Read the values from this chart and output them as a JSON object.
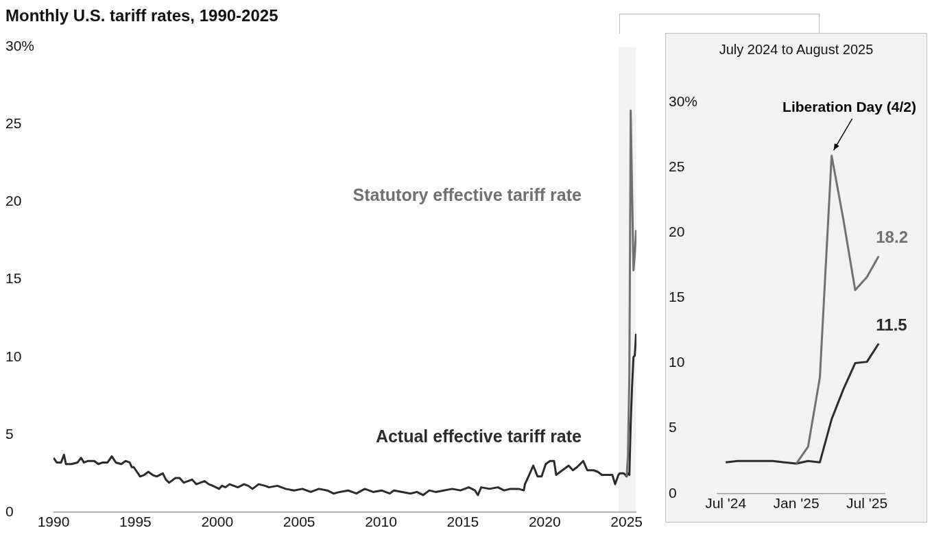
{
  "chart_data": [
    {
      "type": "line",
      "title": "Monthly U.S. tariff rates, 1990-2025",
      "xlim": [
        1990,
        2025.6
      ],
      "xticks": [
        1990,
        1995,
        2000,
        2005,
        2010,
        2015,
        2020,
        2025
      ],
      "ylim": [
        0,
        30
      ],
      "yticks": [
        0,
        5,
        10,
        15,
        20,
        25,
        {
          "value": 30,
          "label": "30%"
        }
      ],
      "grid": false,
      "legend": false,
      "bands": [
        {
          "axis": "x",
          "from": 2024.5,
          "to": 2025.58,
          "color": "#f2f2f2"
        }
      ],
      "series": [
        {
          "name": "Statutory effective tariff rate",
          "color": "#707070",
          "x": [
            2025.0,
            2025.08,
            2025.17,
            2025.25,
            2025.33,
            2025.42,
            2025.5,
            2025.58
          ],
          "values": [
            2.3,
            3.6,
            8.9,
            25.9,
            21.0,
            15.6,
            16.6,
            18.2
          ]
        },
        {
          "name": "Actual effective tariff rate",
          "color": "#2b2b2b",
          "x": [
            1990.0,
            1990.2,
            1990.46,
            1990.64,
            1990.76,
            1991.09,
            1991.47,
            1991.68,
            1991.86,
            1992.11,
            1992.49,
            1992.74,
            1993.0,
            1993.3,
            1993.56,
            1993.81,
            1994.14,
            1994.4,
            1994.65,
            1994.78,
            1994.9,
            1995.03,
            1995.29,
            1995.54,
            1995.79,
            1996.05,
            1996.3,
            1996.68,
            1996.86,
            1997.06,
            1997.45,
            1997.7,
            1997.95,
            1998.21,
            1998.46,
            1998.72,
            1998.97,
            1999.22,
            1999.48,
            1999.73,
            2000.11,
            2000.29,
            2000.5,
            2000.75,
            2001.0,
            2001.26,
            2001.64,
            2001.89,
            2002.15,
            2002.53,
            2002.91,
            2003.16,
            2003.67,
            2004.18,
            2004.69,
            2005.2,
            2005.71,
            2006.21,
            2006.72,
            2007.1,
            2007.48,
            2007.99,
            2008.5,
            2009.01,
            2009.52,
            2010.03,
            2010.53,
            2010.79,
            2011.3,
            2011.8,
            2012.19,
            2012.57,
            2012.95,
            2013.33,
            2013.84,
            2014.35,
            2014.85,
            2015.36,
            2015.74,
            2015.92,
            2016.12,
            2016.63,
            2017.14,
            2017.52,
            2017.9,
            2018.41,
            2018.72,
            2018.79,
            2019.05,
            2019.3,
            2019.56,
            2019.81,
            2020.06,
            2020.32,
            2020.57,
            2020.7,
            2020.95,
            2021.21,
            2021.46,
            2021.72,
            2021.97,
            2022.35,
            2022.6,
            2022.99,
            2023.24,
            2023.49,
            2023.8,
            2024.13,
            2024.3,
            2024.5,
            2024.58,
            2024.67,
            2024.75,
            2024.83,
            2024.92,
            2025.0,
            2025.08,
            2025.17,
            2025.25,
            2025.33,
            2025.42,
            2025.5,
            2025.58
          ],
          "values": [
            3.5,
            3.2,
            3.2,
            3.7,
            3.1,
            3.1,
            3.2,
            3.5,
            3.2,
            3.3,
            3.3,
            3.1,
            3.2,
            3.2,
            3.6,
            3.2,
            3.1,
            3.3,
            3.2,
            2.9,
            2.9,
            2.7,
            2.3,
            2.4,
            2.6,
            2.4,
            2.3,
            2.5,
            2.1,
            1.9,
            2.2,
            2.2,
            1.9,
            2.0,
            2.1,
            1.8,
            1.9,
            2.0,
            1.8,
            1.7,
            1.5,
            1.7,
            1.6,
            1.8,
            1.7,
            1.6,
            1.8,
            1.7,
            1.5,
            1.8,
            1.7,
            1.6,
            1.7,
            1.5,
            1.4,
            1.5,
            1.3,
            1.5,
            1.4,
            1.2,
            1.3,
            1.4,
            1.2,
            1.5,
            1.3,
            1.4,
            1.2,
            1.4,
            1.3,
            1.2,
            1.3,
            1.1,
            1.4,
            1.3,
            1.4,
            1.5,
            1.4,
            1.6,
            1.4,
            1.1,
            1.6,
            1.5,
            1.6,
            1.4,
            1.5,
            1.5,
            1.4,
            1.8,
            2.4,
            3.0,
            2.3,
            2.3,
            3.1,
            3.3,
            3.3,
            2.4,
            2.6,
            2.8,
            3.0,
            2.7,
            2.9,
            3.3,
            2.7,
            2.7,
            2.6,
            2.4,
            2.4,
            2.4,
            1.8,
            2.4,
            2.5,
            2.5,
            2.5,
            2.5,
            2.4,
            2.3,
            2.5,
            2.4,
            5.7,
            8.0,
            10.0,
            10.1,
            11.5
          ]
        }
      ]
    },
    {
      "type": "line",
      "title": "July 2024 to August 2025",
      "xlim": [
        "2024-06-08",
        "2025-08-18"
      ],
      "xticks": [
        {
          "value": "2024-07",
          "label": "Jul '24"
        },
        {
          "value": "2025-01",
          "label": "Jan '25"
        },
        {
          "value": "2025-07",
          "label": "Jul '25"
        }
      ],
      "ylim": [
        0,
        30
      ],
      "yticks": [
        0,
        5,
        10,
        15,
        20,
        25,
        {
          "value": 30,
          "label": "30%"
        }
      ],
      "grid": false,
      "legend": false,
      "annotations": [
        {
          "text": "Liberation Day (4/2)",
          "x": "2025-04",
          "y": 25.9
        }
      ],
      "series": [
        {
          "color": "#707070",
          "x": [
            "2025-01",
            "2025-02",
            "2025-03",
            "2025-04",
            "2025-05",
            "2025-06",
            "2025-07",
            "2025-08"
          ],
          "values": [
            2.3,
            3.6,
            8.9,
            25.9,
            21.0,
            15.6,
            16.6,
            18.2
          ],
          "value_labels": [
            null,
            null,
            null,
            null,
            null,
            null,
            null,
            "18.2"
          ]
        },
        {
          "color": "#2b2b2b",
          "x": [
            "2024-07",
            "2024-08",
            "2024-09",
            "2024-10",
            "2024-11",
            "2024-12",
            "2025-01",
            "2025-02",
            "2025-03",
            "2025-04",
            "2025-05",
            "2025-06",
            "2025-07",
            "2025-08"
          ],
          "values": [
            2.4,
            2.5,
            2.5,
            2.5,
            2.5,
            2.4,
            2.3,
            2.5,
            2.4,
            5.7,
            8.0,
            10.0,
            10.1,
            11.5
          ],
          "value_labels": [
            null,
            null,
            null,
            null,
            null,
            null,
            null,
            null,
            null,
            null,
            null,
            null,
            null,
            "11.5"
          ]
        }
      ]
    }
  ]
}
